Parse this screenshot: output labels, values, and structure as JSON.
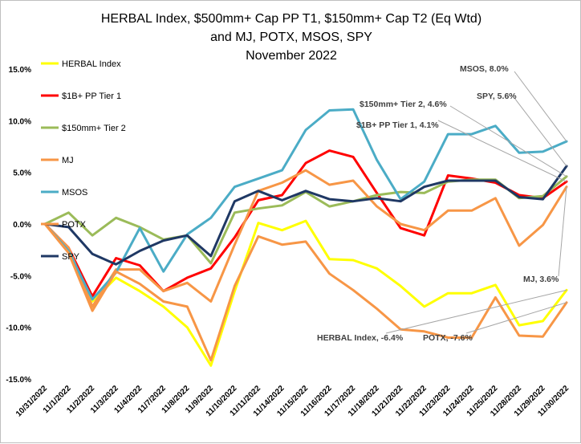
{
  "chart_data": {
    "type": "line",
    "title_lines": [
      "HERBAL Index, $500mm+ Cap PP T1, $150mm+ Cap T2  (Eq Wtd)",
      "and MJ, POTX, MSOS, SPY",
      "November 2022"
    ],
    "categories": [
      "10/31/2022",
      "11/1/2022",
      "11/2/2022",
      "11/3/2022",
      "11/4/2022",
      "11/7/2022",
      "11/8/2022",
      "11/9/2022",
      "11/10/2022",
      "11/11/2022",
      "11/14/2022",
      "11/15/2022",
      "11/16/2022",
      "11/17/2022",
      "11/18/2022",
      "11/21/2022",
      "11/22/2022",
      "11/23/2022",
      "11/24/2022",
      "11/25/2022",
      "11/28/2022",
      "11/29/2022",
      "11/30/2022"
    ],
    "ylim": [
      -15,
      15
    ],
    "yticks": [
      "15.0%",
      "10.0%",
      "5.0%",
      "0.0%",
      "-5.0%",
      "-10.0%",
      "-15.0%"
    ],
    "series": [
      {
        "name": "HERBAL Index",
        "color": "#ffff00",
        "values": [
          0,
          -2.5,
          -7.5,
          -5.2,
          -6.5,
          -8,
          -10,
          -13.7,
          -6.5,
          0.1,
          -0.6,
          0.3,
          -3.4,
          -3.5,
          -4.3,
          -6,
          -8,
          -6.7,
          -6.7,
          -5.9,
          -9.8,
          -9.4,
          -6.4
        ]
      },
      {
        "name": "$1B+ PP Tier 1",
        "color": "#ff0000",
        "values": [
          0,
          -2.3,
          -7,
          -3.3,
          -4,
          -6.5,
          -5.2,
          -4.3,
          -1.3,
          2.3,
          2.8,
          5.9,
          7.1,
          6.5,
          3,
          -0.4,
          -1.1,
          4.7,
          4.4,
          4,
          2.8,
          2.5,
          4.1
        ]
      },
      {
        "name": "$150mm+ Tier 2",
        "color": "#9bbb59",
        "values": [
          0,
          1.1,
          -1.1,
          0.6,
          -0.3,
          -1.5,
          -1.1,
          -3.8,
          1.1,
          1.5,
          1.8,
          3.1,
          1.7,
          2.2,
          2.8,
          3.1,
          3,
          4.1,
          4.3,
          4.3,
          2.5,
          2.7,
          4.6
        ]
      },
      {
        "name": "MJ",
        "color": "#f79646",
        "values": [
          0,
          -2.3,
          -8,
          -4.4,
          -4.4,
          -6.5,
          -5.7,
          -7.5,
          -2,
          3.2,
          4,
          5.2,
          3.8,
          4.2,
          1.7,
          0,
          -0.6,
          1.3,
          1.3,
          2.5,
          -2.1,
          -0.1,
          3.6
        ]
      },
      {
        "name": "MSOS",
        "color": "#4bacc6",
        "values": [
          0,
          -2.6,
          -7.3,
          -4.7,
          -0.4,
          -4.6,
          -1,
          0.6,
          3.6,
          4.4,
          5.2,
          9.1,
          11,
          11.1,
          6.2,
          2.4,
          4.1,
          8.7,
          8.7,
          9.5,
          6.9,
          7,
          8
        ]
      },
      {
        "name": "POTX",
        "color": "#f79646",
        "values": [
          0,
          -2.8,
          -8.4,
          -4.6,
          -5.8,
          -7.5,
          -8,
          -13.2,
          -6,
          -1.2,
          -2,
          -1.7,
          -4.8,
          -6.4,
          -8.2,
          -10.2,
          -10.4,
          -11,
          -11,
          -7.1,
          -10.8,
          -10.9,
          -7.6
        ]
      },
      {
        "name": "SPY",
        "color": "#1f3864",
        "values": [
          0,
          -0.3,
          -2.9,
          -3.9,
          -2.6,
          -1.6,
          -1.1,
          -3.1,
          2.2,
          3.2,
          2.3,
          3.2,
          2.4,
          2.2,
          2.5,
          2.2,
          3.6,
          4.2,
          4.2,
          4.2,
          2.6,
          2.4,
          5.6
        ]
      }
    ],
    "annotations": [
      {
        "text": "MSOS, 8.0%",
        "series": "MSOS"
      },
      {
        "text": "SPY, 5.6%",
        "series": "SPY"
      },
      {
        "text": "$150mm+ Tier 2, 4.6%",
        "series": "$150mm+ Tier 2"
      },
      {
        "text": "$1B+ PP Tier 1, 4.1%",
        "series": "$1B+ PP Tier 1"
      },
      {
        "text": "MJ, 3.6%",
        "series": "MJ"
      },
      {
        "text": "HERBAL Index, -6.4%",
        "series": "HERBAL Index"
      },
      {
        "text": "POTX, -7.6%",
        "series": "POTX"
      }
    ],
    "legend_position": "top-left",
    "grid": false
  }
}
